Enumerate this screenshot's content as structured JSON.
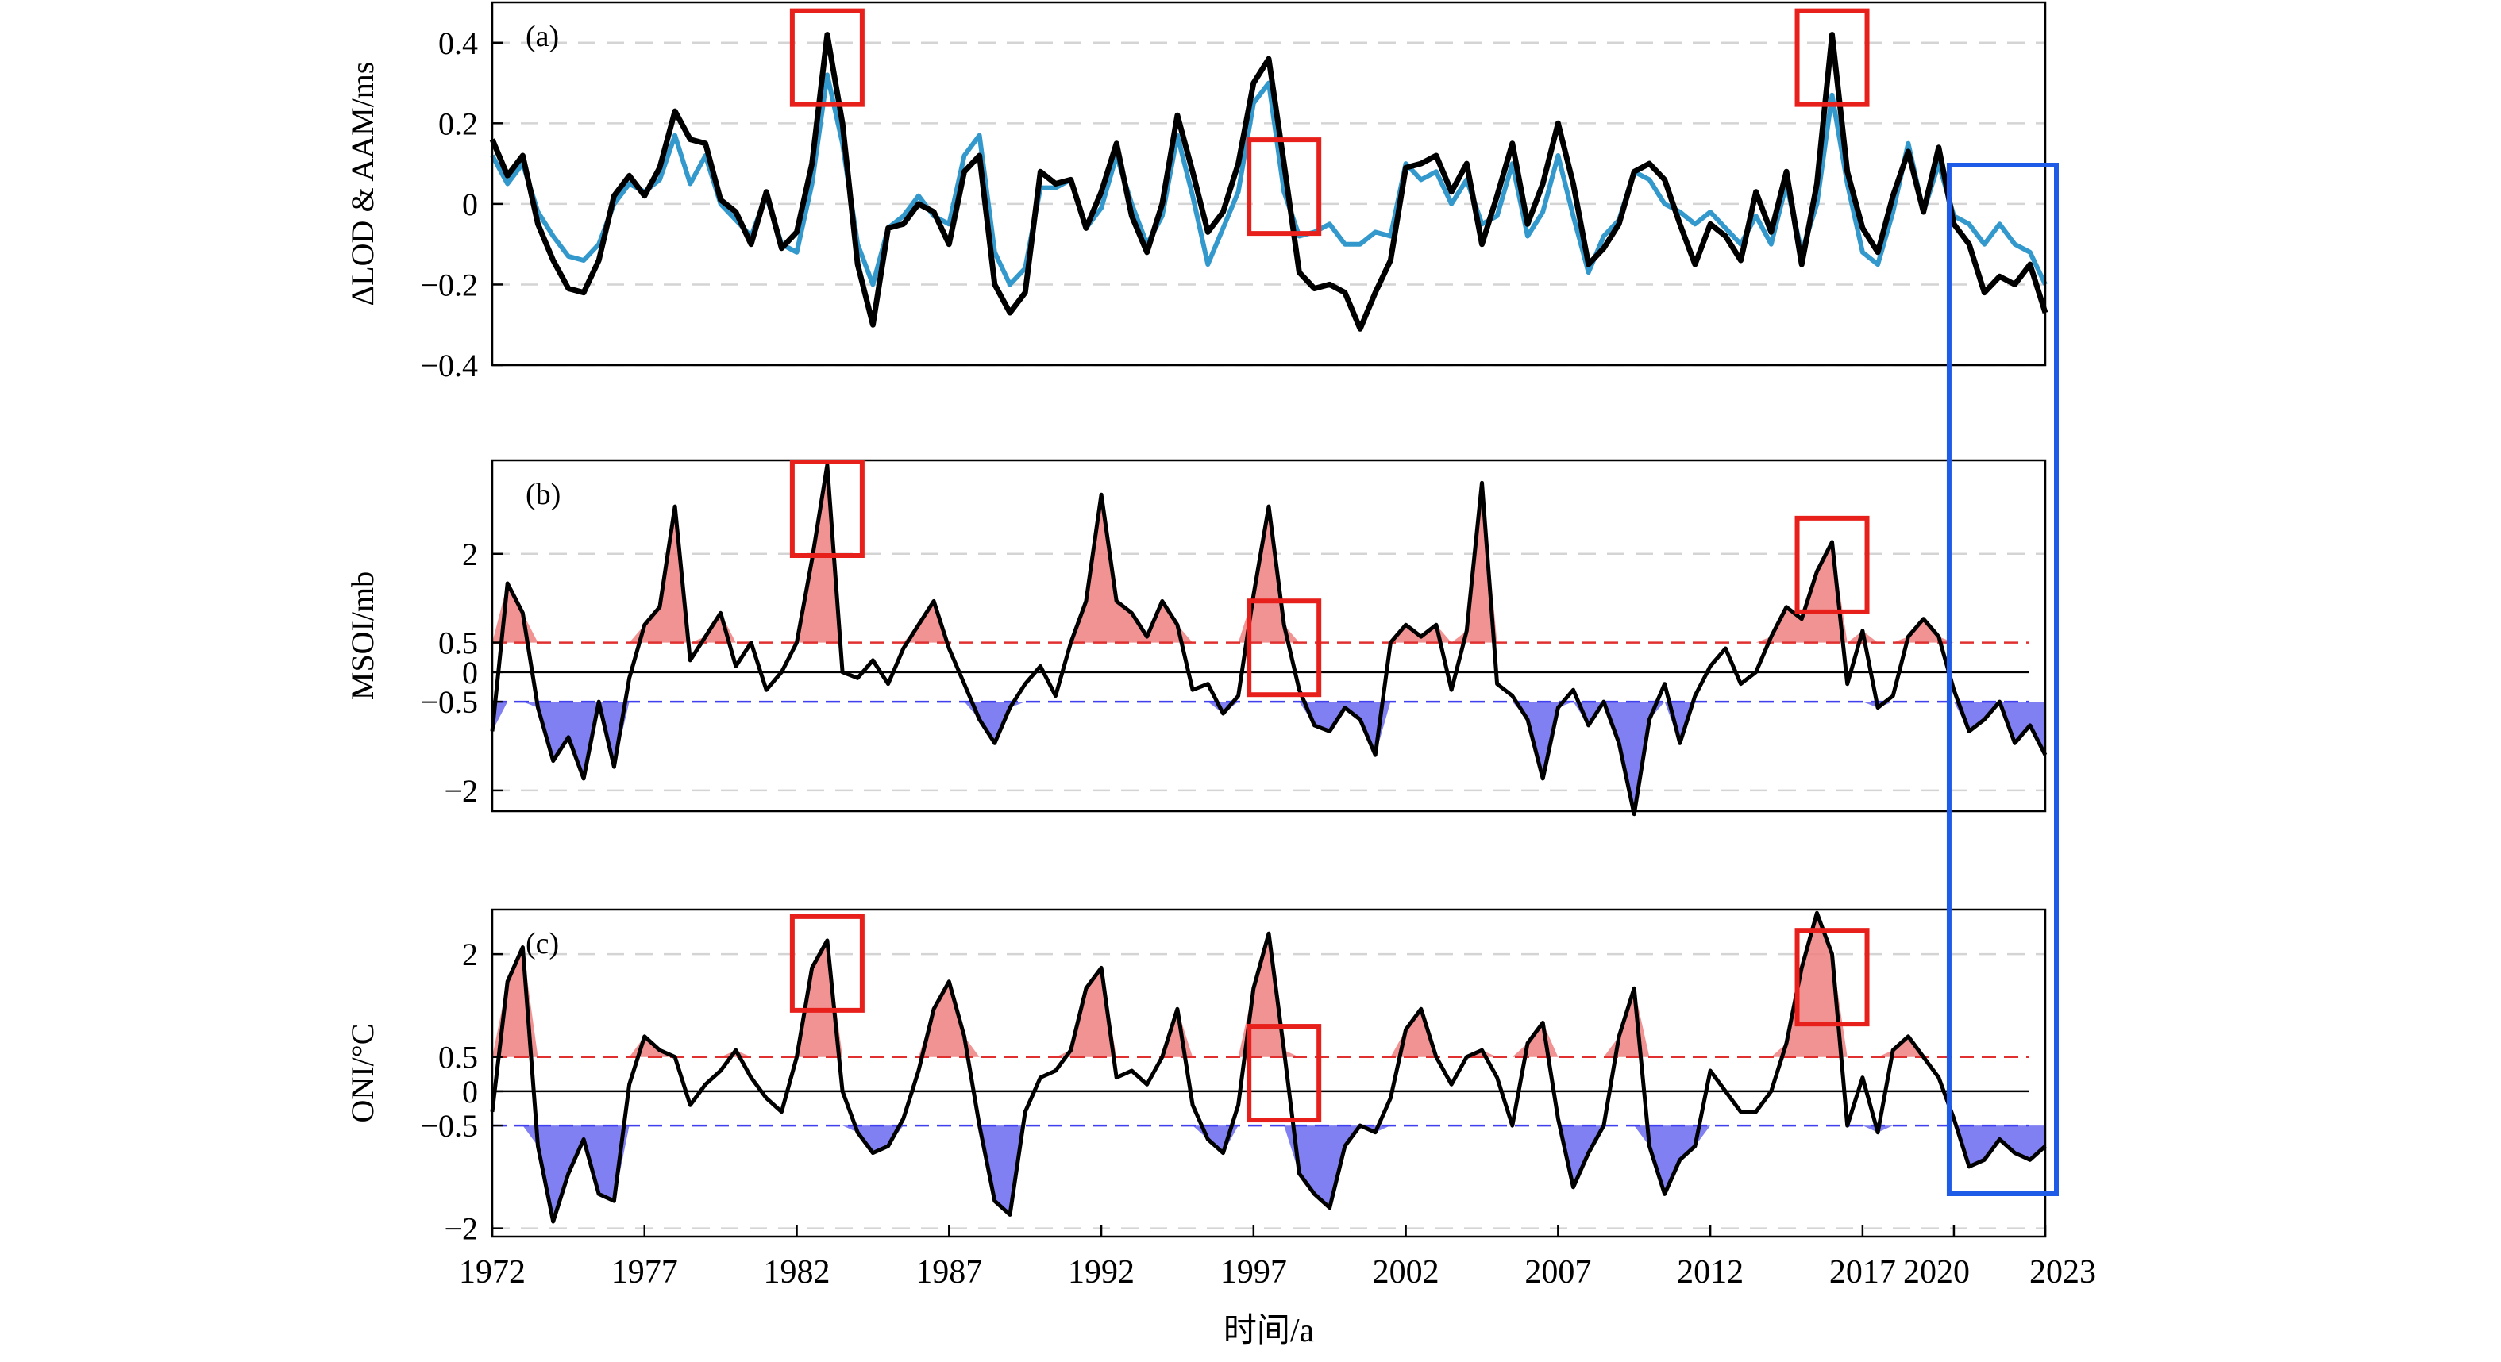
{
  "xlabel": "时间/a",
  "x_ticks": [
    "1972",
    "1977",
    "1982",
    "1987",
    "1992",
    "1997",
    "2002",
    "2007",
    "2012",
    "2017",
    "2020",
    "2023"
  ],
  "colors": {
    "lod": "#000000",
    "aam": "#3399cc",
    "pos_fill": "#f08080",
    "neg_fill": "#6a6af0",
    "pos_line": "#e03030",
    "neg_line": "#4040ee",
    "highlight_red": "#e8201c",
    "highlight_blue": "#1e5be6"
  },
  "highlight_years": {
    "el_nino_peaks": [
      1983.0,
      1998.0,
      2016.0
    ],
    "recent_window": [
      2020.0,
      2023.0
    ]
  },
  "chart_data": [
    {
      "panel_label": "(a)",
      "type": "line",
      "ylabel": "ΔLOD & AAM/ms",
      "ylim": [
        -0.4,
        0.5
      ],
      "y_ticks": [
        "0.4",
        "0.2",
        "0",
        "−0.2",
        "−0.4"
      ],
      "grid": "dashed horizontal",
      "series": [
        {
          "key": "lod",
          "x": [
            1972.0,
            1972.5,
            1973.0,
            1973.5,
            1974.0,
            1974.5,
            1975.0,
            1975.5,
            1976.0,
            1976.5,
            1977.0,
            1977.5,
            1978.0,
            1978.5,
            1979.0,
            1979.5,
            1980.0,
            1980.5,
            1981.0,
            1981.5,
            1982.0,
            1982.5,
            1983.0,
            1983.5,
            1984.0,
            1984.5,
            1985.0,
            1985.5,
            1986.0,
            1986.5,
            1987.0,
            1987.5,
            1988.0,
            1988.5,
            1989.0,
            1989.5,
            1990.0,
            1990.5,
            1991.0,
            1991.5,
            1992.0,
            1992.5,
            1993.0,
            1993.5,
            1994.0,
            1994.5,
            1995.0,
            1995.5,
            1996.0,
            1996.5,
            1997.0,
            1997.5,
            1998.0,
            1998.5,
            1999.0,
            1999.5,
            2000.0,
            2000.5,
            2001.0,
            2001.5,
            2002.0,
            2002.5,
            2003.0,
            2003.5,
            2004.0,
            2004.5,
            2005.0,
            2005.5,
            2006.0,
            2006.5,
            2007.0,
            2007.5,
            2008.0,
            2008.5,
            2009.0,
            2009.5,
            2010.0,
            2010.5,
            2011.0,
            2011.5,
            2012.0,
            2012.5,
            2013.0,
            2013.5,
            2014.0,
            2014.5,
            2015.0,
            2015.5,
            2016.0,
            2016.5,
            2017.0,
            2017.5,
            2018.0,
            2018.5,
            2019.0,
            2019.5,
            2020.0,
            2020.5,
            2021.0,
            2021.5,
            2022.0,
            2022.5,
            2023.0
          ],
          "values": [
            0.16,
            0.07,
            0.12,
            -0.05,
            -0.14,
            -0.21,
            -0.22,
            -0.14,
            0.02,
            0.07,
            0.02,
            0.09,
            0.23,
            0.16,
            0.15,
            0.01,
            -0.02,
            -0.1,
            0.03,
            -0.11,
            -0.07,
            0.1,
            0.42,
            0.2,
            -0.15,
            -0.3,
            -0.06,
            -0.05,
            0.0,
            -0.02,
            -0.1,
            0.08,
            0.12,
            -0.2,
            -0.27,
            -0.22,
            0.08,
            0.05,
            0.06,
            -0.06,
            0.03,
            0.15,
            -0.03,
            -0.12,
            0.0,
            0.22,
            0.08,
            -0.07,
            -0.02,
            0.1,
            0.3,
            0.36,
            0.1,
            -0.17,
            -0.21,
            -0.2,
            -0.22,
            -0.31,
            -0.22,
            -0.14,
            0.09,
            0.1,
            0.12,
            0.03,
            0.1,
            -0.1,
            0.02,
            0.15,
            -0.05,
            0.05,
            0.2,
            0.05,
            -0.15,
            -0.11,
            -0.05,
            0.08,
            0.1,
            0.06,
            -0.05,
            -0.15,
            -0.05,
            -0.08,
            -0.14,
            0.03,
            -0.07,
            0.08,
            -0.15,
            0.05,
            0.42,
            0.08,
            -0.06,
            -0.12,
            0.02,
            0.13,
            -0.02,
            0.14,
            -0.05,
            -0.1,
            -0.22,
            -0.18,
            -0.2,
            -0.15,
            -0.27
          ]
        },
        {
          "key": "aam",
          "x": [
            1972.0,
            1972.5,
            1973.0,
            1973.5,
            1974.0,
            1974.5,
            1975.0,
            1975.5,
            1976.0,
            1976.5,
            1977.0,
            1977.5,
            1978.0,
            1978.5,
            1979.0,
            1979.5,
            1980.0,
            1980.5,
            1981.0,
            1981.5,
            1982.0,
            1982.5,
            1983.0,
            1983.5,
            1984.0,
            1984.5,
            1985.0,
            1985.5,
            1986.0,
            1986.5,
            1987.0,
            1987.5,
            1988.0,
            1988.5,
            1989.0,
            1989.5,
            1990.0,
            1990.5,
            1991.0,
            1991.5,
            1992.0,
            1992.5,
            1993.0,
            1993.5,
            1994.0,
            1994.5,
            1995.0,
            1995.5,
            1996.0,
            1996.5,
            1997.0,
            1997.5,
            1998.0,
            1998.5,
            1999.0,
            1999.5,
            2000.0,
            2000.5,
            2001.0,
            2001.5,
            2002.0,
            2002.5,
            2003.0,
            2003.5,
            2004.0,
            2004.5,
            2005.0,
            2005.5,
            2006.0,
            2006.5,
            2007.0,
            2007.5,
            2008.0,
            2008.5,
            2009.0,
            2009.5,
            2010.0,
            2010.5,
            2011.0,
            2011.5,
            2012.0,
            2012.5,
            2013.0,
            2013.5,
            2014.0,
            2014.5,
            2015.0,
            2015.5,
            2016.0,
            2016.5,
            2017.0,
            2017.5,
            2018.0,
            2018.5,
            2019.0,
            2019.5,
            2020.0,
            2020.5,
            2021.0,
            2021.5,
            2022.0,
            2022.5,
            2023.0
          ],
          "values": [
            0.12,
            0.05,
            0.1,
            -0.02,
            -0.08,
            -0.13,
            -0.14,
            -0.1,
            0.0,
            0.05,
            0.03,
            0.06,
            0.17,
            0.05,
            0.12,
            0.0,
            -0.04,
            -0.08,
            0.02,
            -0.1,
            -0.12,
            0.05,
            0.32,
            0.15,
            -0.1,
            -0.2,
            -0.06,
            -0.03,
            0.02,
            -0.03,
            -0.05,
            0.12,
            0.17,
            -0.12,
            -0.2,
            -0.16,
            0.04,
            0.04,
            0.06,
            -0.06,
            -0.01,
            0.12,
            0.0,
            -0.1,
            -0.03,
            0.17,
            0.02,
            -0.15,
            -0.06,
            0.03,
            0.25,
            0.3,
            0.03,
            -0.08,
            -0.07,
            -0.05,
            -0.1,
            -0.1,
            -0.07,
            -0.08,
            0.1,
            0.06,
            0.08,
            0.0,
            0.06,
            -0.05,
            -0.03,
            0.1,
            -0.08,
            -0.02,
            0.12,
            -0.03,
            -0.17,
            -0.08,
            -0.04,
            0.08,
            0.06,
            0.0,
            -0.02,
            -0.05,
            -0.02,
            -0.06,
            -0.1,
            -0.03,
            -0.1,
            0.05,
            -0.12,
            0.0,
            0.27,
            0.05,
            -0.12,
            -0.15,
            -0.02,
            0.15,
            -0.02,
            0.1,
            -0.03,
            -0.05,
            -0.1,
            -0.05,
            -0.1,
            -0.12,
            -0.2
          ]
        }
      ]
    },
    {
      "panel_label": "(b)",
      "type": "area",
      "ylabel": "MSOI/mb",
      "ylim": [
        -2.35,
        3.58
      ],
      "y_ticks": [
        "2",
        "0.5",
        "0",
        "−0.5",
        "−2"
      ],
      "thresholds": [
        0.5,
        -0.5
      ],
      "series": [
        {
          "key": "msoi",
          "x": [
            1972.0,
            1972.5,
            1973.0,
            1973.5,
            1974.0,
            1974.5,
            1975.0,
            1975.5,
            1976.0,
            1976.5,
            1977.0,
            1977.5,
            1978.0,
            1978.5,
            1979.0,
            1979.5,
            1980.0,
            1980.5,
            1981.0,
            1981.5,
            1982.0,
            1982.5,
            1983.0,
            1983.5,
            1984.0,
            1984.5,
            1985.0,
            1985.5,
            1986.0,
            1986.5,
            1987.0,
            1987.5,
            1988.0,
            1988.5,
            1989.0,
            1989.5,
            1990.0,
            1990.5,
            1991.0,
            1991.5,
            1992.0,
            1992.5,
            1993.0,
            1993.5,
            1994.0,
            1994.5,
            1995.0,
            1995.5,
            1996.0,
            1996.5,
            1997.0,
            1997.5,
            1998.0,
            1998.5,
            1999.0,
            1999.5,
            2000.0,
            2000.5,
            2001.0,
            2001.5,
            2002.0,
            2002.5,
            2003.0,
            2003.5,
            2004.0,
            2004.5,
            2005.0,
            2005.5,
            2006.0,
            2006.5,
            2007.0,
            2007.5,
            2008.0,
            2008.5,
            2009.0,
            2009.5,
            2010.0,
            2010.5,
            2011.0,
            2011.5,
            2012.0,
            2012.5,
            2013.0,
            2013.5,
            2014.0,
            2014.5,
            2015.0,
            2015.5,
            2016.0,
            2016.5,
            2017.0,
            2017.5,
            2018.0,
            2018.5,
            2019.0,
            2019.5,
            2020.0,
            2020.5,
            2021.0,
            2021.5,
            2022.0,
            2022.5,
            2023.0
          ],
          "values": [
            -1.0,
            1.5,
            1.0,
            -0.6,
            -1.5,
            -1.1,
            -1.8,
            -0.5,
            -1.6,
            -0.1,
            0.8,
            1.1,
            2.8,
            0.2,
            0.6,
            1.0,
            0.1,
            0.5,
            -0.3,
            0.0,
            0.5,
            1.9,
            3.5,
            0.0,
            -0.1,
            0.2,
            -0.2,
            0.4,
            0.8,
            1.2,
            0.4,
            -0.2,
            -0.8,
            -1.2,
            -0.6,
            -0.2,
            0.1,
            -0.4,
            0.5,
            1.2,
            3.0,
            1.2,
            1.0,
            0.6,
            1.2,
            0.8,
            -0.3,
            -0.2,
            -0.7,
            -0.4,
            1.3,
            2.8,
            0.8,
            -0.3,
            -0.9,
            -1.0,
            -0.6,
            -0.8,
            -1.4,
            0.5,
            0.8,
            0.6,
            0.8,
            -0.3,
            0.7,
            3.2,
            -0.2,
            -0.4,
            -0.8,
            -1.8,
            -0.6,
            -0.3,
            -0.9,
            -0.5,
            -1.2,
            -2.4,
            -0.8,
            -0.2,
            -1.2,
            -0.4,
            0.1,
            0.4,
            -0.2,
            0.0,
            0.6,
            1.1,
            0.9,
            1.7,
            2.2,
            -0.2,
            0.7,
            -0.6,
            -0.4,
            0.6,
            0.9,
            0.6,
            -0.3,
            -1.0,
            -0.8,
            -0.5,
            -1.2,
            -0.9,
            -1.4
          ]
        }
      ]
    },
    {
      "panel_label": "(c)",
      "type": "area",
      "ylabel": "ONI/°C",
      "ylim": [
        -2.12,
        2.65
      ],
      "y_ticks": [
        "2",
        "0.5",
        "0",
        "−0.5",
        "−2"
      ],
      "thresholds": [
        0.5,
        -0.5
      ],
      "series": [
        {
          "key": "oni",
          "x": [
            1972.0,
            1972.5,
            1973.0,
            1973.5,
            1974.0,
            1974.5,
            1975.0,
            1975.5,
            1976.0,
            1976.5,
            1977.0,
            1977.5,
            1978.0,
            1978.5,
            1979.0,
            1979.5,
            1980.0,
            1980.5,
            1981.0,
            1981.5,
            1982.0,
            1982.5,
            1983.0,
            1983.5,
            1984.0,
            1984.5,
            1985.0,
            1985.5,
            1986.0,
            1986.5,
            1987.0,
            1987.5,
            1988.0,
            1988.5,
            1989.0,
            1989.5,
            1990.0,
            1990.5,
            1991.0,
            1991.5,
            1992.0,
            1992.5,
            1993.0,
            1993.5,
            1994.0,
            1994.5,
            1995.0,
            1995.5,
            1996.0,
            1996.5,
            1997.0,
            1997.5,
            1998.0,
            1998.5,
            1999.0,
            1999.5,
            2000.0,
            2000.5,
            2001.0,
            2001.5,
            2002.0,
            2002.5,
            2003.0,
            2003.5,
            2004.0,
            2004.5,
            2005.0,
            2005.5,
            2006.0,
            2006.5,
            2007.0,
            2007.5,
            2008.0,
            2008.5,
            2009.0,
            2009.5,
            2010.0,
            2010.5,
            2011.0,
            2011.5,
            2012.0,
            2012.5,
            2013.0,
            2013.5,
            2014.0,
            2014.5,
            2015.0,
            2015.5,
            2016.0,
            2016.5,
            2017.0,
            2017.5,
            2018.0,
            2018.5,
            2019.0,
            2019.5,
            2020.0,
            2020.5,
            2021.0,
            2021.5,
            2022.0,
            2022.5,
            2023.0
          ],
          "values": [
            -0.3,
            1.6,
            2.1,
            -0.8,
            -1.9,
            -1.2,
            -0.7,
            -1.5,
            -1.6,
            0.1,
            0.8,
            0.6,
            0.5,
            -0.2,
            0.1,
            0.3,
            0.6,
            0.2,
            -0.1,
            -0.3,
            0.5,
            1.8,
            2.2,
            0.0,
            -0.6,
            -0.9,
            -0.8,
            -0.4,
            0.3,
            1.2,
            1.6,
            0.8,
            -0.5,
            -1.6,
            -1.8,
            -0.3,
            0.2,
            0.3,
            0.6,
            1.5,
            1.8,
            0.2,
            0.3,
            0.1,
            0.5,
            1.2,
            -0.2,
            -0.7,
            -0.9,
            -0.2,
            1.5,
            2.3,
            0.6,
            -1.2,
            -1.5,
            -1.7,
            -0.8,
            -0.5,
            -0.6,
            -0.1,
            0.9,
            1.2,
            0.5,
            0.1,
            0.5,
            0.6,
            0.2,
            -0.5,
            0.7,
            1.0,
            -0.4,
            -1.4,
            -0.9,
            -0.5,
            0.8,
            1.5,
            -0.8,
            -1.5,
            -1.0,
            -0.8,
            0.3,
            0.0,
            -0.3,
            -0.3,
            0.0,
            0.7,
            1.8,
            2.6,
            2.0,
            -0.5,
            0.2,
            -0.6,
            0.6,
            0.8,
            0.5,
            0.2,
            -0.4,
            -1.1,
            -1.0,
            -0.7,
            -0.9,
            -1.0,
            -0.8
          ]
        }
      ]
    }
  ]
}
